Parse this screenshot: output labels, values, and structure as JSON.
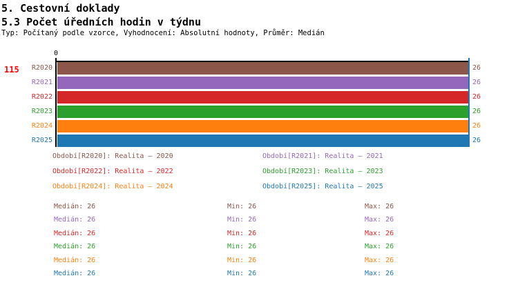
{
  "header": {
    "title": "5. Cestovní doklady",
    "subtitle": "5.3 Počet úředních hodin v týdnu",
    "meta": "Typ: Počítaný podle vzorce, Vyhodnocení: Absolutní hodnoty, Průměr: Medián"
  },
  "row_count": "115",
  "row_count_color": "#ff0000",
  "chart_data": {
    "type": "bar",
    "orientation": "horizontal",
    "title": "5.3 Počet úředních hodin v týdnu",
    "categories": [
      "R2020",
      "R2021",
      "R2022",
      "R2023",
      "R2024",
      "R2025"
    ],
    "values": [
      26,
      26,
      26,
      26,
      26,
      26
    ],
    "value_labels": [
      "26",
      "26",
      "26",
      "26",
      "26",
      "26"
    ],
    "series_colors": [
      "#8c564b",
      "#9467bd",
      "#d62728",
      "#2ca02c",
      "#ff7f0e",
      "#1f77b4"
    ],
    "xlim": [
      0,
      26
    ],
    "x_axis_ticks": [
      "0"
    ],
    "axis_position": "top",
    "grid": false,
    "marker_line": {
      "value": 26,
      "color": "#1f77b4"
    },
    "legend_position": "bottom"
  },
  "legend": {
    "entries": [
      {
        "label": "Období[R2020]: Realita – 2020"
      },
      {
        "label": "Období[R2021]: Realita – 2021"
      },
      {
        "label": "Období[R2022]: Realita – 2022"
      },
      {
        "label": "Období[R2023]: Realita – 2023"
      },
      {
        "label": "Období[R2024]: Realita – 2024"
      },
      {
        "label": "Období[R2025]: Realita – 2025"
      }
    ]
  },
  "stats": {
    "median_label": "Medián",
    "min_label": "Min",
    "max_label": "Max",
    "rows": [
      {
        "median": "26",
        "min": "26",
        "max": "26"
      },
      {
        "median": "26",
        "min": "26",
        "max": "26"
      },
      {
        "median": "26",
        "min": "26",
        "max": "26"
      },
      {
        "median": "26",
        "min": "26",
        "max": "26"
      },
      {
        "median": "26",
        "min": "26",
        "max": "26"
      },
      {
        "median": "26",
        "min": "26",
        "max": "26"
      }
    ]
  }
}
